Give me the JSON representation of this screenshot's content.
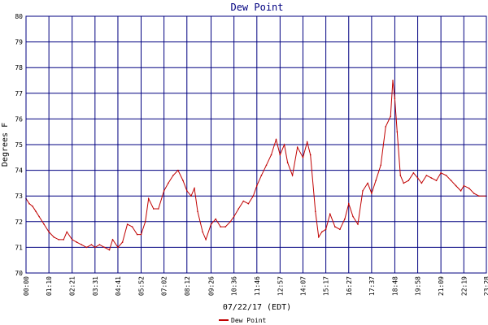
{
  "chart_data": {
    "type": "line",
    "title": "Dew Point",
    "xlabel": "07/22/17 (EDT)",
    "ylabel": "Degrees F",
    "ylim": [
      70,
      80
    ],
    "y_ticks": [
      "70",
      "71",
      "72",
      "73",
      "74",
      "75",
      "76",
      "77",
      "78",
      "79",
      "80"
    ],
    "x_ticks": [
      "00:00",
      "01:10",
      "02:21",
      "03:31",
      "04:41",
      "05:52",
      "07:02",
      "08:12",
      "09:26",
      "10:36",
      "11:46",
      "12:57",
      "14:07",
      "15:17",
      "16:27",
      "17:37",
      "18:48",
      "19:58",
      "21:09",
      "22:19",
      "23:28"
    ],
    "grid": true,
    "legend_position": "bottom-center",
    "series": [
      {
        "name": "Dew Point",
        "color": "#c00000",
        "points": [
          [
            "00:00",
            72.9
          ],
          [
            "00:10",
            72.7
          ],
          [
            "00:20",
            72.6
          ],
          [
            "00:30",
            72.4
          ],
          [
            "00:40",
            72.2
          ],
          [
            "00:55",
            71.9
          ],
          [
            "01:10",
            71.6
          ],
          [
            "01:25",
            71.4
          ],
          [
            "01:40",
            71.3
          ],
          [
            "01:55",
            71.3
          ],
          [
            "02:05",
            71.6
          ],
          [
            "02:21",
            71.3
          ],
          [
            "02:35",
            71.2
          ],
          [
            "02:50",
            71.1
          ],
          [
            "03:05",
            71.0
          ],
          [
            "03:20",
            71.1
          ],
          [
            "03:31",
            71.0
          ],
          [
            "03:45",
            71.1
          ],
          [
            "04:00",
            71.0
          ],
          [
            "04:15",
            70.9
          ],
          [
            "04:25",
            71.3
          ],
          [
            "04:41",
            71.0
          ],
          [
            "04:55",
            71.2
          ],
          [
            "05:10",
            71.9
          ],
          [
            "05:25",
            71.8
          ],
          [
            "05:40",
            71.5
          ],
          [
            "05:52",
            71.5
          ],
          [
            "06:05",
            72.0
          ],
          [
            "06:15",
            72.9
          ],
          [
            "06:30",
            72.5
          ],
          [
            "06:45",
            72.5
          ],
          [
            "07:02",
            73.2
          ],
          [
            "07:15",
            73.5
          ],
          [
            "07:30",
            73.8
          ],
          [
            "07:45",
            74.0
          ],
          [
            "08:00",
            73.6
          ],
          [
            "08:12",
            73.2
          ],
          [
            "08:25",
            73.0
          ],
          [
            "08:35",
            73.3
          ],
          [
            "08:45",
            72.4
          ],
          [
            "09:00",
            71.6
          ],
          [
            "09:10",
            71.3
          ],
          [
            "09:26",
            71.9
          ],
          [
            "09:40",
            72.1
          ],
          [
            "09:55",
            71.8
          ],
          [
            "10:10",
            71.8
          ],
          [
            "10:25",
            72.0
          ],
          [
            "10:36",
            72.2
          ],
          [
            "10:50",
            72.5
          ],
          [
            "11:05",
            72.8
          ],
          [
            "11:20",
            72.7
          ],
          [
            "11:35",
            73.0
          ],
          [
            "11:46",
            73.4
          ],
          [
            "12:00",
            73.8
          ],
          [
            "12:15",
            74.2
          ],
          [
            "12:30",
            74.6
          ],
          [
            "12:45",
            75.2
          ],
          [
            "12:57",
            74.6
          ],
          [
            "13:10",
            75.0
          ],
          [
            "13:20",
            74.3
          ],
          [
            "13:35",
            73.8
          ],
          [
            "13:50",
            74.9
          ],
          [
            "14:07",
            74.5
          ],
          [
            "14:20",
            75.1
          ],
          [
            "14:30",
            74.6
          ],
          [
            "14:45",
            72.4
          ],
          [
            "14:55",
            71.4
          ],
          [
            "15:05",
            71.6
          ],
          [
            "15:17",
            71.7
          ],
          [
            "15:30",
            72.3
          ],
          [
            "15:45",
            71.8
          ],
          [
            "16:00",
            71.7
          ],
          [
            "16:15",
            72.1
          ],
          [
            "16:27",
            72.7
          ],
          [
            "16:40",
            72.2
          ],
          [
            "16:55",
            71.9
          ],
          [
            "17:10",
            73.2
          ],
          [
            "17:25",
            73.5
          ],
          [
            "17:37",
            73.1
          ],
          [
            "17:50",
            73.6
          ],
          [
            "18:05",
            74.2
          ],
          [
            "18:20",
            75.7
          ],
          [
            "18:35",
            76.1
          ],
          [
            "18:42",
            77.5
          ],
          [
            "18:48",
            76.8
          ],
          [
            "18:55",
            75.5
          ],
          [
            "19:05",
            73.8
          ],
          [
            "19:15",
            73.5
          ],
          [
            "19:30",
            73.6
          ],
          [
            "19:45",
            73.9
          ],
          [
            "19:58",
            73.7
          ],
          [
            "20:10",
            73.5
          ],
          [
            "20:25",
            73.8
          ],
          [
            "20:40",
            73.7
          ],
          [
            "20:55",
            73.6
          ],
          [
            "21:09",
            73.9
          ],
          [
            "21:25",
            73.8
          ],
          [
            "21:40",
            73.6
          ],
          [
            "21:55",
            73.4
          ],
          [
            "22:10",
            73.2
          ],
          [
            "22:19",
            73.4
          ],
          [
            "22:35",
            73.3
          ],
          [
            "22:50",
            73.1
          ],
          [
            "23:05",
            73.0
          ],
          [
            "23:28",
            73.0
          ]
        ]
      }
    ]
  }
}
